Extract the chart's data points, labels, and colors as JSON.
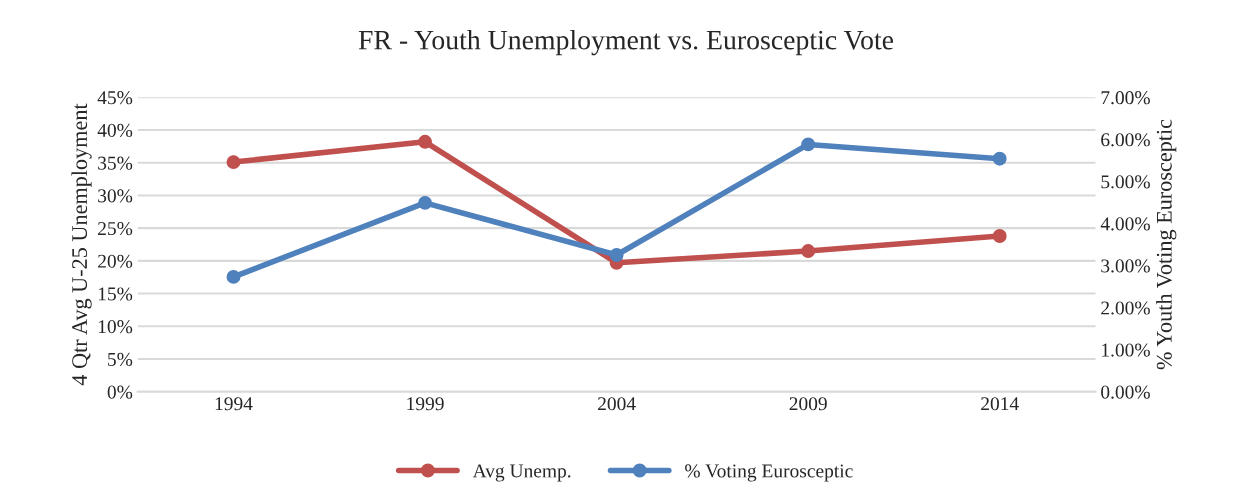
{
  "chart_data": {
    "type": "line",
    "title": "FR - Youth Unemployment vs. Eurosceptic Vote",
    "categories": [
      "1994",
      "1999",
      "2004",
      "2009",
      "2014"
    ],
    "series": [
      {
        "name": "Avg Unemp.",
        "color": "#c0504d",
        "values": [
          35.1,
          38.2,
          19.7,
          21.5,
          23.8
        ]
      },
      {
        "name": "% Voting Eurosceptic",
        "color": "#4f81bd",
        "axis": "y2",
        "values": [
          2.73,
          4.49,
          3.25,
          5.88,
          5.54
        ]
      }
    ],
    "ylabel": "4 Qtr Avg U-25 Unemployment",
    "y2label": "% Youth Voting Eurosceptic",
    "ylim": [
      0,
      45
    ],
    "yticks": [
      {
        "value": 0,
        "label": "0%"
      },
      {
        "value": 5,
        "label": "5%"
      },
      {
        "value": 10,
        "label": "10%"
      },
      {
        "value": 15,
        "label": "15%"
      },
      {
        "value": 20,
        "label": "20%"
      },
      {
        "value": 25,
        "label": "25%"
      },
      {
        "value": 30,
        "label": "30%"
      },
      {
        "value": 35,
        "label": "35%"
      },
      {
        "value": 40,
        "label": "40%"
      },
      {
        "value": 45,
        "label": "45%"
      }
    ],
    "y2lim": [
      0,
      7
    ],
    "y2ticks": [
      {
        "value": 0,
        "label": "0.00%"
      },
      {
        "value": 1,
        "label": "1.00%"
      },
      {
        "value": 2,
        "label": "2.00%"
      },
      {
        "value": 3,
        "label": "3.00%"
      },
      {
        "value": 4,
        "label": "4.00%"
      },
      {
        "value": 5,
        "label": "5.00%"
      },
      {
        "value": 6,
        "label": "6.00%"
      },
      {
        "value": 7,
        "label": "7.00%"
      }
    ],
    "grid": "y",
    "legend": "bottom",
    "marker": "circle",
    "line_style": "solid"
  }
}
